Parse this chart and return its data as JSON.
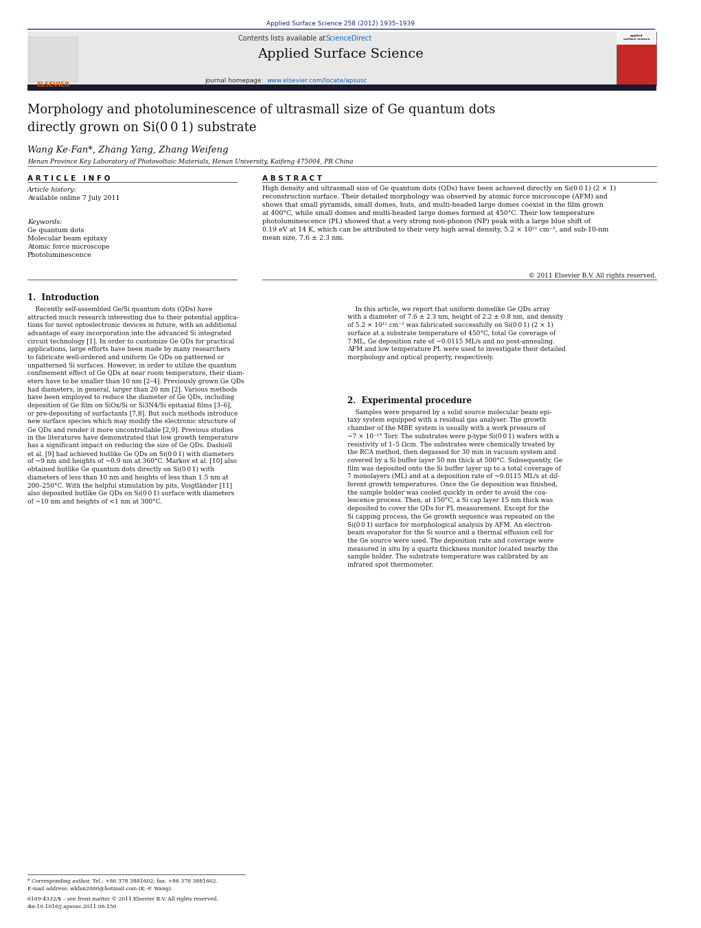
{
  "page_width": 10.21,
  "page_height": 13.51,
  "bg_color": "#ffffff",
  "header_citation": "Applied Surface Science 258 (2012) 1935–1939",
  "header_citation_color": "#1a237e",
  "journal_name": "Applied Surface Science",
  "contents_text": "Contents lists available at ",
  "sciencedirect_text": "ScienceDirect",
  "sciencedirect_color": "#1565c0",
  "homepage_text": "journal homepage: ",
  "homepage_url": "www.elsevier.com/locate/apsusc",
  "homepage_url_color": "#1565c0",
  "elsevier_color": "#e65100",
  "header_bg": "#e8e8e8",
  "header_bar_color": "#1a237e",
  "article_title": "Morphology and photoluminescence of ultrasmall size of Ge quantum dots\ndirectly grown on Si(0 0 1) substrate",
  "authors": "Wang Ke-Fan*, Zhang Yang, Zhang Weifeng",
  "affiliation": "Henan Province Key Laboratory of Photovoltaic Materials, Henan University, Kaifeng 475004, PR China",
  "article_info_label": "A R T I C L E   I N F O",
  "abstract_label": "A B S T R A C T",
  "article_history_label": "Article history:",
  "available_online": "Available online 7 July 2011",
  "keywords_label": "Keywords:",
  "keywords": [
    "Ge quantum dots",
    "Molecular beam epitaxy",
    "Atomic force microscope",
    "Photoluminescence"
  ],
  "abstract_text": "High density and ultrasmall size of Ge quantum dots (QDs) have been achieved directly on Si(0 0 1) (2 × 1)\nreconstruction surface. Their detailed morphology was observed by atomic force microscope (AFM) and\nshows that small pyramids, small domes, huts, and multi-headed large domes coexist in the film grown\nat 400°C, while small domes and multi-headed large domes formed at 450°C. Their low temperature\nphotoluminescence (PL) showed that a very strong non-phonon (NP) peak with a large blue shift of\n0.19 eV at 14 K, which can be attributed to their very high areal density, 5.2 × 10¹¹ cm⁻², and sub-10-nm\nmean size, 7.6 ± 2.3 nm.",
  "copyright": "© 2011 Elsevier B.V. All rights reserved.",
  "section1_title": "1.  Introduction",
  "section1_left": "    Recently self-assembled Ge/Si quantum dots (QDs) have\nattracted much research interesting due to their potential applica-\ntions for novel optoelectronic devices in future, with an additional\nadvantage of easy incorporation into the advanced Si integrated\ncircuit technology [1]. In order to customize Ge QDs for practical\napplications, large efforts have been made by many researchers\nto fabricate well-ordered and uniform Ge QDs on patterned or\nunpatterned Si surfaces. However, in order to utilize the quantum\nconfinement effect of Ge QDs at near room temperature, their diam-\neters have to be smaller than 10 nm [2–4]. Previously grown Ge QDs\nhad diameters, in general, larger than 20 nm [2]. Various methods\nhave been employed to reduce the diameter of Ge QDs, including\ndeposition of Ge film on SiOx/Si or Si3N4/Si epitaxial films [3–6],\nor pre-depositing of surfactants [7,8]. But such methods introduce\nnew surface species which may modify the electronic structure of\nGe QDs and render it more uncontrollable [2,9]. Previous studies\nin the literatures have demonstrated that low growth temperature\nhas a significant impact on reducing the size of Ge QDs. Dashiell\net al. [9] had achieved hutlike Ge QDs on Si(0 0 1) with diameters\nof ~9 nm and heights of ~0.9 nm at 360°C. Markov et al. [10] also\nobtained hutlike Ge quantum dots directly on Si(0 0 1) with\ndiameters of less than 10 nm and heights of less than 1.5 nm at\n200–250°C. With the helpful stimulation by pits, Voigtländer [11]\nalso deposited hutlike Ge QDs on Si(0 0 1) surface with diameters\nof ~10 nm and heights of <1 nm at 300°C.",
  "section1_right": "    In this article, we report that uniform domelike Ge QDs array\nwith a diameter of 7.6 ± 2.3 nm, height of 2.2 ± 0.8 nm, and density\nof 5.2 × 10¹¹ cm⁻² was fabricated successfully on Si(0 0 1) (2 × 1)\nsurface at a substrate temperature of 450°C, total Ge coverage of\n7 ML, Ge deposition rate of ~0.0115 ML/s and no post-annealing.\nAFM and low temperature PL were used to investigate their detailed\nmorphology and optical property, respectively.",
  "section2_title": "2.  Experimental procedure",
  "section2_right": "    Samples were prepared by a solid source molecular beam epi-\ntaxy system equipped with a residual gas analyser. The growth\nchamber of the MBE system is usually with a work pressure of\n~7 × 10⁻¹° Torr. The substrates were p-type Si(0 0 1) wafers with a\nresistivity of 1–5 Ωcm. The substrates were chemically treated by\nthe RCA method, then degassed for 30 min in vacuum system and\ncovered by a Si buffer layer 50 nm thick at 500°C. Subsequently, Ge\nfilm was deposited onto the Si buffer layer up to a total coverage of\n7 monolayers (ML) and at a deposition rate of ~0.0115 ML/s at dif-\nferent growth temperatures. Once the Ge deposition was finished,\nthe sample holder was cooled quickly in order to avoid the coa-\nlescence process. Then, at 150°C, a Si cap layer 15 nm thick was\ndeposited to cover the QDs for PL measurement. Except for the\nSi capping process, the Ge growth sequence was repeated on the\nSi(0 0 1) surface for morphological analysis by AFM. An electron-\nbeam evaporator for the Si source and a thermal effusion cell for\nthe Ge source were used. The deposition rate and coverage were\nmeasured in situ by a quartz thickness monitor located nearby the\nsample holder. The substrate temperature was calibrated by an\ninfrared spot thermometer.",
  "footnote1": "* Corresponding author. Tel.: +86 378 3881602; fax: +86 378 3881602.",
  "footnote2": "E-mail address: wkfan2000@hotmail.com (K.-F. Wang).",
  "footnote3": "0169-4332/$ – see front matter © 2011 Elsevier B.V. All rights reserved.",
  "footnote4": "doi:10.1016/j.apsusc.2011.06.150"
}
